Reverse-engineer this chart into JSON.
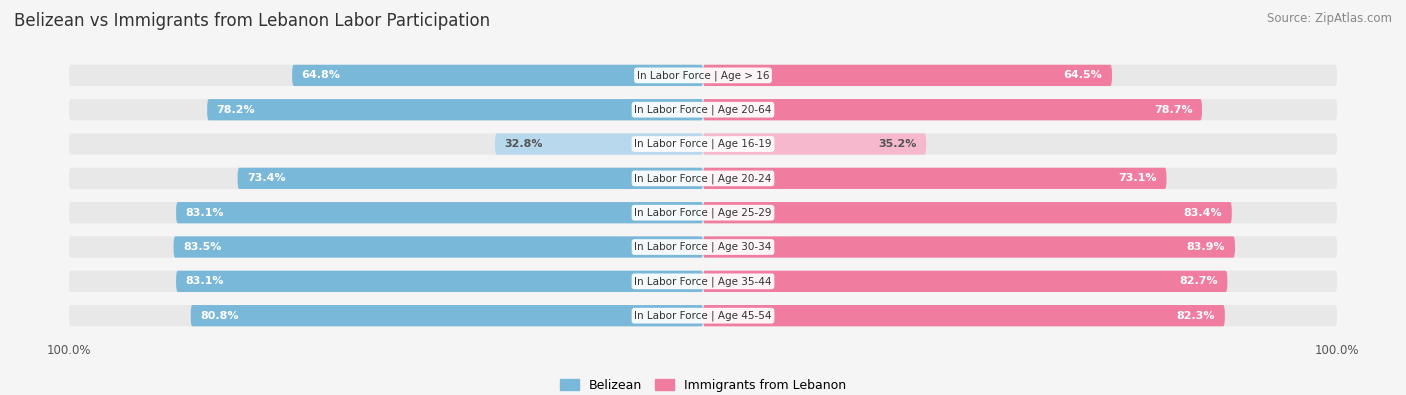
{
  "title": "Belizean vs Immigrants from Lebanon Labor Participation",
  "source": "Source: ZipAtlas.com",
  "categories": [
    "In Labor Force | Age > 16",
    "In Labor Force | Age 20-64",
    "In Labor Force | Age 16-19",
    "In Labor Force | Age 20-24",
    "In Labor Force | Age 25-29",
    "In Labor Force | Age 30-34",
    "In Labor Force | Age 35-44",
    "In Labor Force | Age 45-54"
  ],
  "belizean_values": [
    64.8,
    78.2,
    32.8,
    73.4,
    83.1,
    83.5,
    83.1,
    80.8
  ],
  "lebanon_values": [
    64.5,
    78.7,
    35.2,
    73.1,
    83.4,
    83.9,
    82.7,
    82.3
  ],
  "belizean_color": "#7ab8d9",
  "lebanon_color": "#f07ca0",
  "belizean_color_light": "#b8d8ee",
  "lebanon_color_light": "#f5b8cc",
  "row_bg_color": "#e8e8e8",
  "background_color": "#f5f5f5",
  "bar_height": 0.62,
  "max_value": 100.0,
  "legend_belizean": "Belizean",
  "legend_lebanon": "Immigrants from Lebanon",
  "title_fontsize": 12,
  "label_fontsize": 8,
  "tick_fontsize": 8.5,
  "source_fontsize": 8.5
}
